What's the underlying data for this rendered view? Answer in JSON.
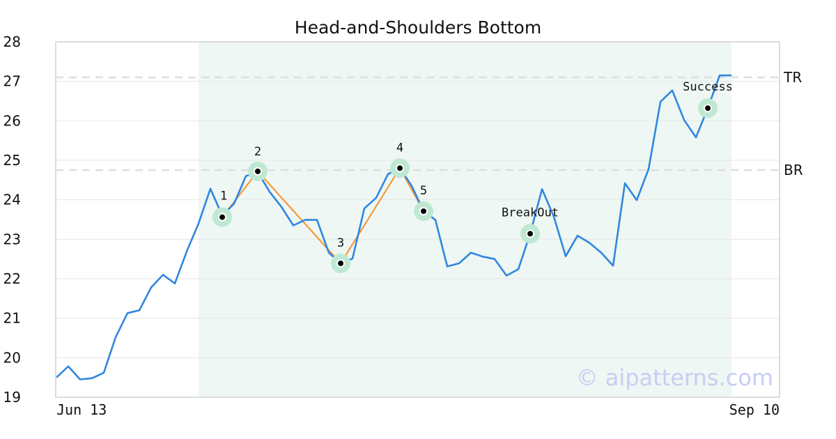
{
  "chart_data": {
    "type": "line",
    "title": "Head-and-Shoulders Bottom",
    "ylim": [
      19,
      28
    ],
    "yticks": [
      19,
      20,
      21,
      22,
      23,
      24,
      25,
      26,
      27,
      28
    ],
    "x_labels": [
      {
        "index": 0,
        "label": "Jun 13"
      },
      {
        "index": 57,
        "label": "Sep 10"
      }
    ],
    "grid": true,
    "series": [
      {
        "color": "#2f86e0",
        "values": [
          19.5,
          19.78,
          19.45,
          19.48,
          19.62,
          20.52,
          21.13,
          21.2,
          21.78,
          22.1,
          21.88,
          22.69,
          23.4,
          24.28,
          23.6,
          23.9,
          24.6,
          24.7,
          24.2,
          23.82,
          23.35,
          23.49,
          23.49,
          22.66,
          22.39,
          22.51,
          23.78,
          24.05,
          24.65,
          24.8,
          24.35,
          23.71,
          23.49,
          22.31,
          22.39,
          22.66,
          22.56,
          22.5,
          22.08,
          22.24,
          23.14,
          24.27,
          23.57,
          22.57,
          23.09,
          22.91,
          22.66,
          22.33,
          24.42,
          23.99,
          24.78,
          26.48,
          26.77,
          26.02,
          25.58,
          26.32,
          27.15,
          27.15
        ]
      }
    ],
    "pattern_region": {
      "start_index": 12,
      "end_index": 57,
      "color": "#eef7f3"
    },
    "levels": [
      {
        "label": "TR",
        "value": 27.1
      },
      {
        "label": "BR",
        "value": 24.75
      }
    ],
    "pattern_points": [
      {
        "label": "1",
        "index": 14,
        "value": 23.56
      },
      {
        "label": "2",
        "index": 17,
        "value": 24.72
      },
      {
        "label": "3",
        "index": 24,
        "value": 22.39
      },
      {
        "label": "4",
        "index": 29,
        "value": 24.8
      },
      {
        "label": "5",
        "index": 31,
        "value": 23.71
      }
    ],
    "events": [
      {
        "label": "BreakOut",
        "index": 40,
        "value": 23.14
      },
      {
        "label": "Success",
        "index": 55,
        "value": 26.32
      }
    ],
    "pattern_line_color": "#f59a3c",
    "marker_halo_color": "#bfe8d3"
  },
  "watermark": "© aipatterns.com"
}
